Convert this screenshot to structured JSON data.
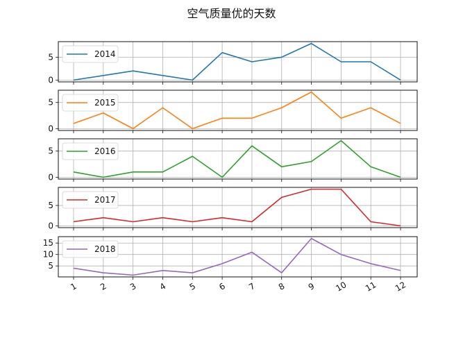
{
  "title": "空气质量优的天数",
  "chart_data": {
    "type": "line",
    "title": "空气质量优的天数",
    "xlabel": "",
    "ylabel": "",
    "x": [
      1,
      2,
      3,
      4,
      5,
      6,
      7,
      8,
      9,
      10,
      11,
      12
    ],
    "x_tick_labels": [
      "1",
      "2",
      "3",
      "4",
      "5",
      "6",
      "7",
      "8",
      "9",
      "10",
      "11",
      "12"
    ],
    "grid": true,
    "legend_position": "upper left",
    "layout": "5 stacked subplots, shared x-axis",
    "series": [
      {
        "name": "2014",
        "color": "#1f77b4",
        "values": [
          0,
          1,
          2,
          1,
          0,
          6,
          4,
          5,
          8,
          4,
          4,
          0
        ],
        "yticks": [
          0,
          5
        ],
        "ylim": [
          -0.4,
          8.4
        ]
      },
      {
        "name": "2015",
        "color": "#ff7f0e",
        "values": [
          1,
          3,
          0,
          4,
          0,
          2,
          2,
          4,
          7,
          2,
          4,
          1
        ],
        "yticks": [
          0,
          5
        ],
        "ylim": [
          -0.35,
          7.35
        ]
      },
      {
        "name": "2016",
        "color": "#2ca02c",
        "values": [
          1,
          0,
          1,
          1,
          4,
          0,
          6,
          2,
          3,
          7,
          2,
          0
        ],
        "yticks": [
          0,
          5
        ],
        "ylim": [
          -0.35,
          7.35
        ]
      },
      {
        "name": "2017",
        "color": "#d62728",
        "values": [
          1,
          2,
          1,
          2,
          1,
          2,
          1,
          7,
          9,
          9,
          1,
          0
        ],
        "yticks": [
          0,
          5
        ],
        "ylim": [
          -0.45,
          9.45
        ]
      },
      {
        "name": "2018",
        "color": "#9467bd",
        "values": [
          4,
          2,
          1,
          3,
          2,
          6,
          11,
          2,
          17,
          10,
          6,
          3
        ],
        "yticks": [
          5,
          10,
          15
        ],
        "ylim": [
          0.2,
          17.8
        ]
      }
    ]
  }
}
